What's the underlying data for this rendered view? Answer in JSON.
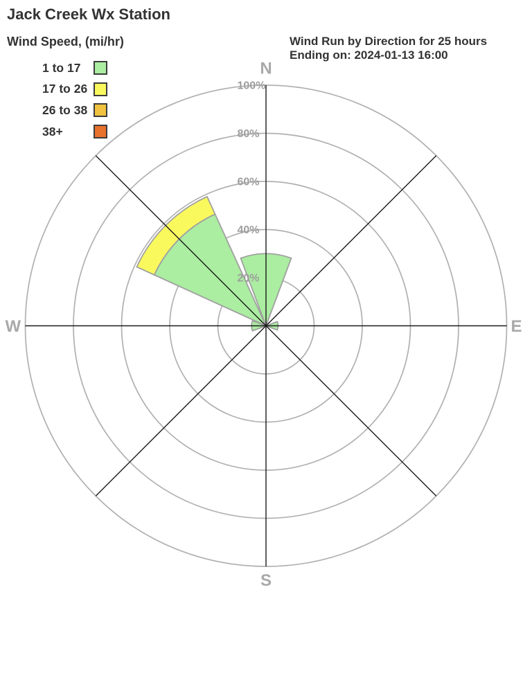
{
  "header": {
    "title": "Jack Creek Wx Station",
    "subtitle_line1": "Wind Run by Direction for 25 hours",
    "subtitle_line2": "Ending on: 2024-01-13 16:00"
  },
  "legend": {
    "title": "Wind Speed, (mi/hr)"
  },
  "chart_data": {
    "type": "wind-rose-stacked-polar-bar",
    "title": "Jack Creek Wx Station",
    "subtitle": "Wind Run by Direction for 25 hours Ending on: 2024-01-13 16:00",
    "units": "percent of total wind run",
    "legend_title": "Wind Speed, (mi/hr)",
    "speed_bins": [
      {
        "label": "1 to 17",
        "color": "#abeda1"
      },
      {
        "label": "17 to 26",
        "color": "#f9f95e"
      },
      {
        "label": "26 to 38",
        "color": "#f0c23f"
      },
      {
        "label": "38+",
        "color": "#e8712c"
      }
    ],
    "ring_ticks_pct": [
      20,
      40,
      60,
      80,
      100
    ],
    "ring_tick_labels": [
      "20%",
      "40%",
      "60%",
      "80%",
      "100%"
    ],
    "compass_labels": {
      "n": "N",
      "e": "E",
      "s": "S",
      "w": "W"
    },
    "r_axis_max_pct": 100,
    "sector_width_deg": 41,
    "grid_on": true,
    "directions": [
      {
        "direction": "N",
        "angle_deg": 0,
        "values_pct": [
          30,
          0,
          0,
          0
        ]
      },
      {
        "direction": "NE",
        "angle_deg": 45,
        "values_pct": [
          0,
          0,
          0,
          0
        ]
      },
      {
        "direction": "E",
        "angle_deg": 90,
        "values_pct": [
          5,
          0,
          0,
          0
        ]
      },
      {
        "direction": "SE",
        "angle_deg": 135,
        "values_pct": [
          0,
          0,
          0,
          0
        ]
      },
      {
        "direction": "S",
        "angle_deg": 180,
        "values_pct": [
          0,
          0,
          0,
          0
        ]
      },
      {
        "direction": "SW",
        "angle_deg": 225,
        "values_pct": [
          0,
          0,
          0,
          0
        ]
      },
      {
        "direction": "W",
        "angle_deg": 270,
        "values_pct": [
          6,
          0,
          0,
          0
        ]
      },
      {
        "direction": "NW",
        "angle_deg": 315,
        "values_pct": [
          51,
          8,
          0,
          0
        ]
      }
    ],
    "colors": {
      "grid": "#b0b0b0",
      "axis": "#1a1a1a",
      "wedge_outline": "#a0a0a0",
      "tick_label": "#9e9e9e",
      "compass_label": "#a9a9a9"
    }
  }
}
